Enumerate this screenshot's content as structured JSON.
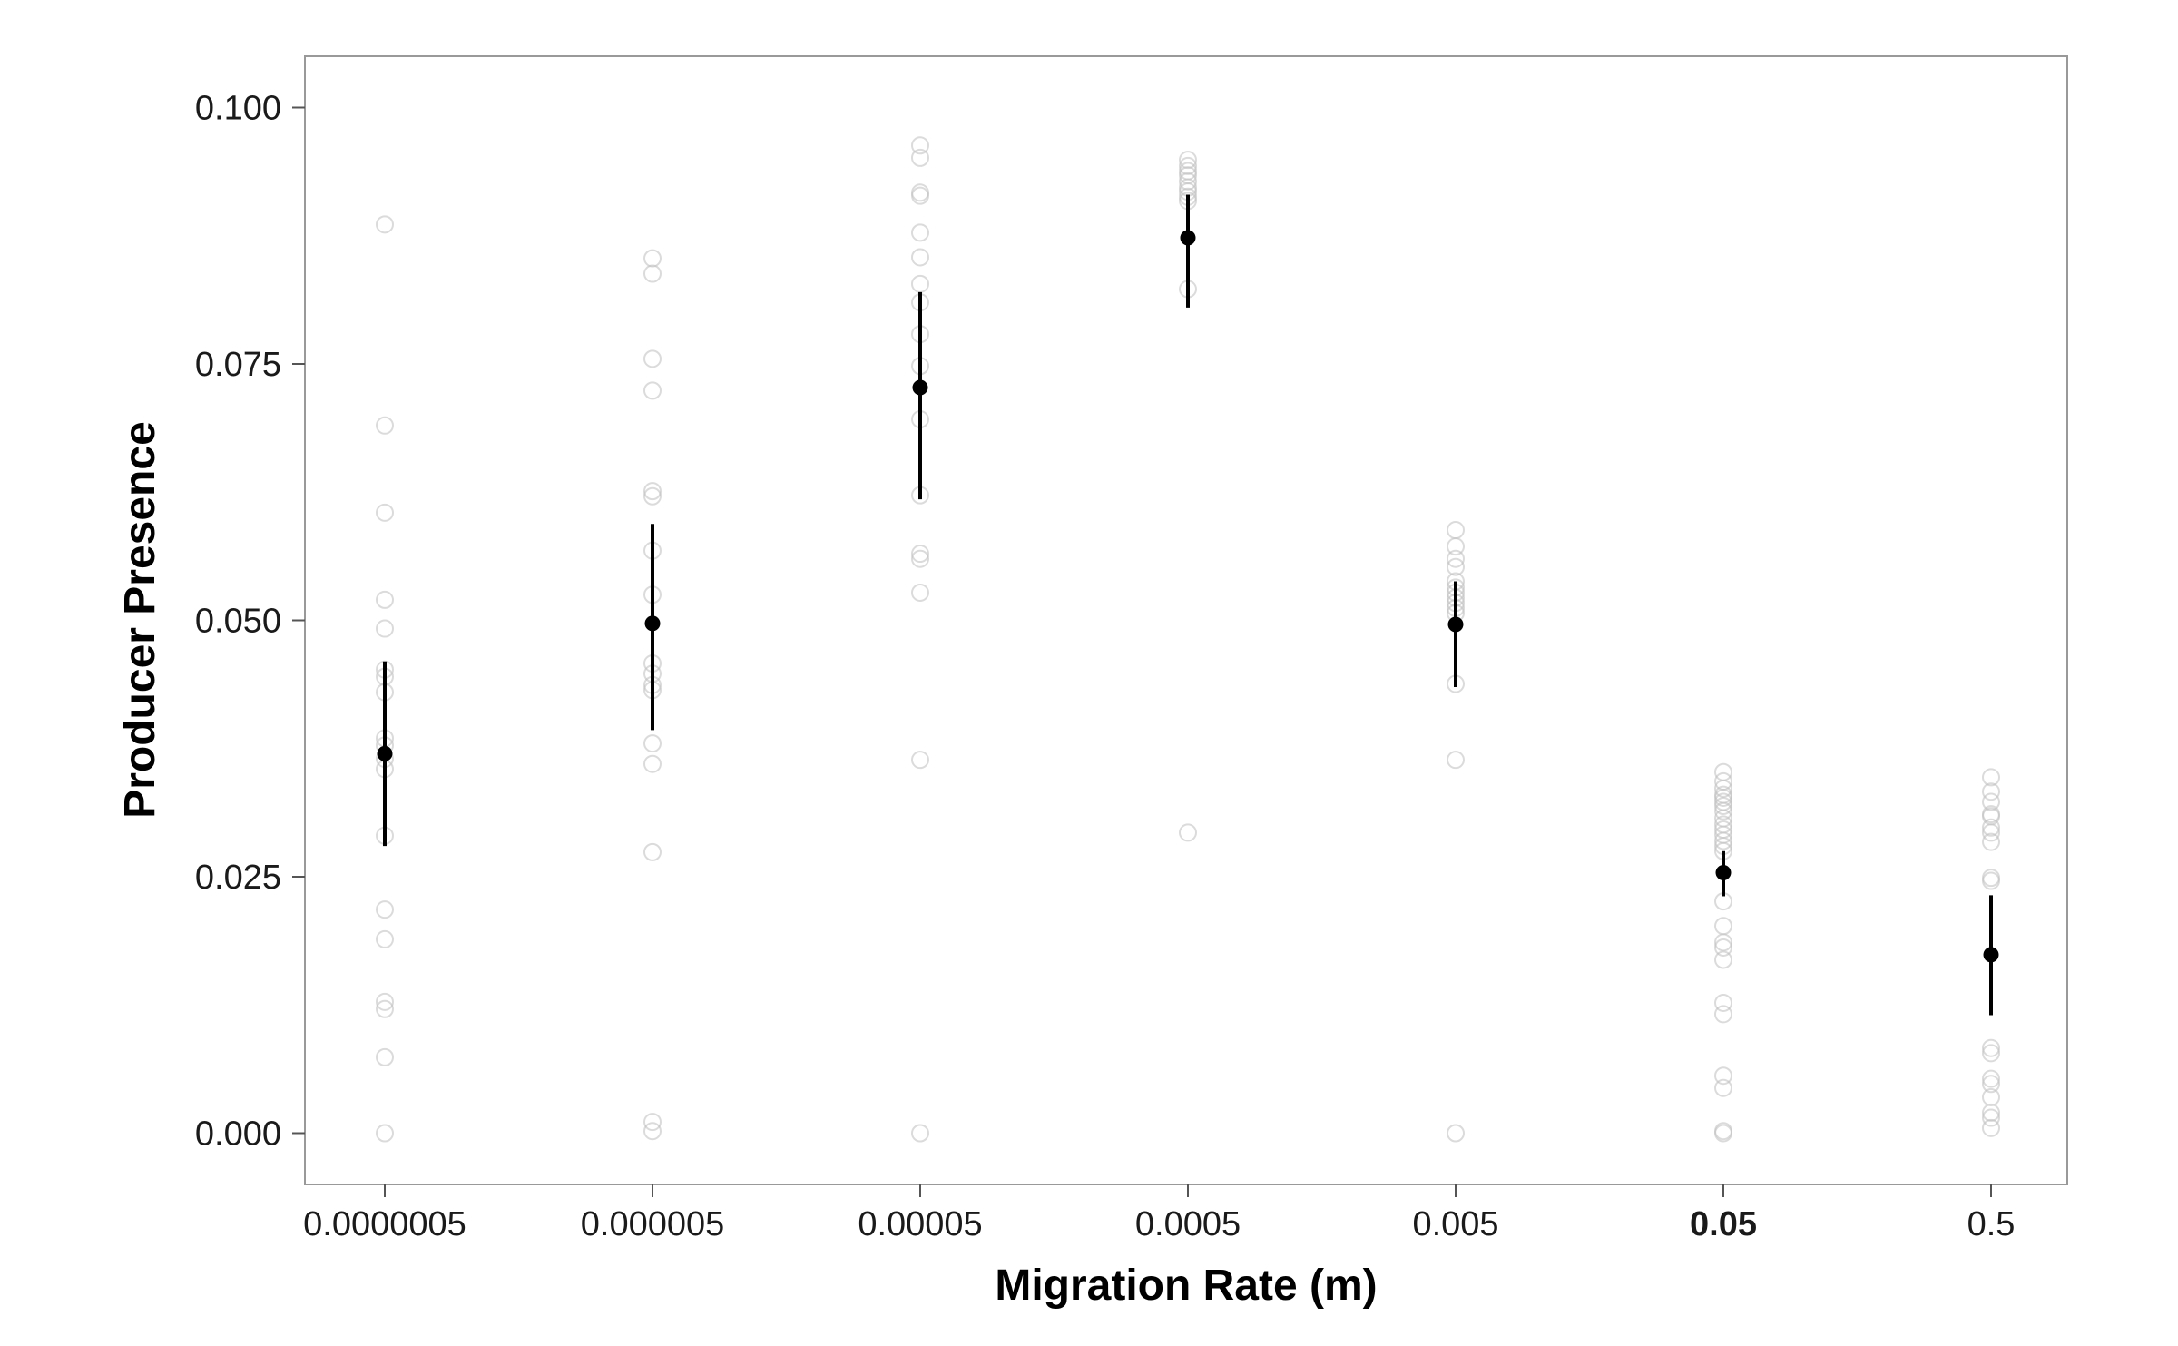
{
  "chart_data": {
    "type": "scatter",
    "title": "",
    "xlabel": "Migration Rate (m)",
    "ylabel": "Producer Presence",
    "categories": [
      "0.0000005",
      "0.000005",
      "0.00005",
      "0.0005",
      "0.005",
      "0.05",
      "0.5"
    ],
    "highlight_category": "0.05",
    "yticks": [
      "0.000",
      "0.025",
      "0.050",
      "0.075",
      "0.100"
    ],
    "ylim": [
      -0.005,
      0.105
    ],
    "grid": false,
    "legend": "none",
    "colors": {
      "mean": "#000000",
      "raw_points": "#bdbdbd",
      "frame": "#999999"
    },
    "series": [
      {
        "name": "",
        "kind": "mean_with_error",
        "mean": [
          0.037,
          0.0497,
          0.0727,
          0.0873,
          0.0496,
          0.0254,
          0.0174
        ],
        "lower": [
          0.028,
          0.0393,
          0.0618,
          0.0805,
          0.0435,
          0.0231,
          0.0115
        ],
        "upper": [
          0.046,
          0.0594,
          0.082,
          0.0915,
          0.0538,
          0.0275,
          0.0232
        ]
      },
      {
        "name": "",
        "kind": "raw_points",
        "points": [
          [
            0.0886,
            0.069,
            0.0605,
            0.052,
            0.0492,
            0.0452,
            0.0445,
            0.043,
            0.0385,
            0.0378,
            0.0365,
            0.0355,
            0.029,
            0.0218,
            0.0189,
            0.0128,
            0.0121,
            0.0074,
            0.0
          ],
          [
            0.0853,
            0.0838,
            0.0755,
            0.0724,
            0.0626,
            0.0621,
            0.0568,
            0.0525,
            0.0458,
            0.0448,
            0.0437,
            0.0432,
            0.038,
            0.036,
            0.0274,
            0.0011,
            0.0002
          ],
          [
            0.0963,
            0.0951,
            0.0917,
            0.0914,
            0.0878,
            0.0854,
            0.0828,
            0.081,
            0.0779,
            0.0748,
            0.0696,
            0.0622,
            0.0565,
            0.056,
            0.0527,
            0.0364,
            0.0
          ],
          [
            0.0949,
            0.0943,
            0.0938,
            0.0934,
            0.0928,
            0.0922,
            0.0918,
            0.0913,
            0.0909,
            0.0823,
            0.0293
          ],
          [
            0.0588,
            0.0572,
            0.056,
            0.0552,
            0.0538,
            0.0532,
            0.0527,
            0.0522,
            0.0517,
            0.0512,
            0.0507,
            0.0438,
            0.0364,
            0.0
          ],
          [
            0.0352,
            0.0343,
            0.0336,
            0.033,
            0.0327,
            0.0323,
            0.0319,
            0.0314,
            0.0307,
            0.0301,
            0.0296,
            0.0291,
            0.0285,
            0.028,
            0.0275,
            0.0226,
            0.0202,
            0.0186,
            0.0181,
            0.0169,
            0.0127,
            0.0116,
            0.0056,
            0.0044,
            0.0002,
            0.0
          ],
          [
            0.0347,
            0.0333,
            0.0323,
            0.0311,
            0.0309,
            0.0298,
            0.0293,
            0.0284,
            0.0249,
            0.0246,
            0.0083,
            0.0078,
            0.0053,
            0.0048,
            0.0035,
            0.002,
            0.0015,
            0.0005
          ]
        ]
      }
    ]
  }
}
